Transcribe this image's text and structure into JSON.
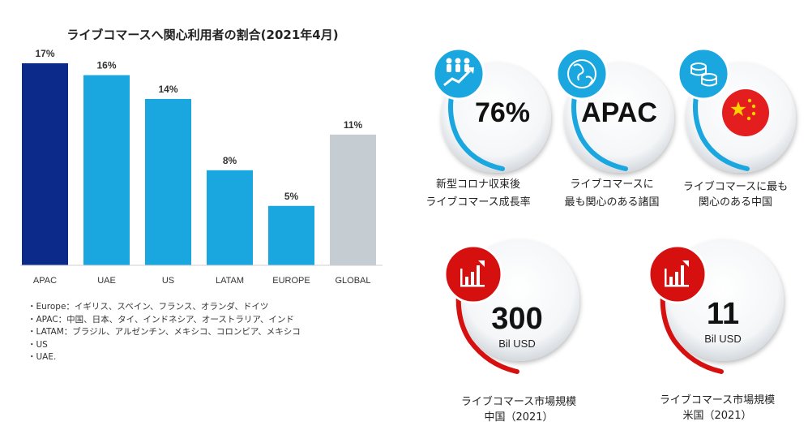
{
  "chart_data": {
    "type": "bar",
    "title": "ライブコマースへ関心利用者の割合(2021年4月)",
    "categories": [
      "APAC",
      "UAE",
      "US",
      "LATAM",
      "EUROPE",
      "GLOBAL"
    ],
    "values": [
      17,
      16,
      14,
      8,
      5,
      11
    ],
    "value_labels": [
      "17%",
      "16%",
      "14%",
      "8%",
      "5%",
      "11%"
    ],
    "colors": [
      "#0b2a8a",
      "#1aa7e0",
      "#1aa7e0",
      "#1aa7e0",
      "#1aa7e0",
      "#c5cdd3"
    ],
    "ylim": [
      0,
      18
    ],
    "grid": false,
    "legend": "none"
  },
  "notes": [
    "・Europe：イギリス、スペイン、フランス、オランダ、ドイツ",
    "・APAC：中国、日本、タイ、インドネシア、オーストラリア、インド",
    "・LATAM：ブラジル、アルゼンチン、メキシコ、コロンビア、メキシコ",
    "・US",
    "・UAE."
  ],
  "stats": [
    {
      "value": "76%",
      "caption": [
        "新型コロナ収束後",
        "ライブコマース成長率"
      ],
      "icon": "growth-people-icon",
      "accent": "#1aa7e0"
    },
    {
      "value": "APAC",
      "caption": [
        "ライブコマースに",
        "最も関心のある諸国"
      ],
      "icon": "globe-icon",
      "accent": "#1aa7e0"
    },
    {
      "value": "",
      "caption": [
        "ライブコマースに最も",
        "関心のある中国"
      ],
      "icon": "coins-icon",
      "accent": "#1aa7e0",
      "flag": "china-flag"
    }
  ],
  "markets": [
    {
      "value": "300",
      "unit": "Bil USD",
      "caption": [
        "ライブコマース市場規模",
        "中国（2021）"
      ],
      "icon": "bar-chart-icon",
      "accent": "#d60f0f"
    },
    {
      "value": "11",
      "unit": "Bil USD",
      "caption": [
        "ライブコマース市場規模",
        "米国（2021）"
      ],
      "icon": "bar-chart-icon",
      "accent": "#d60f0f"
    }
  ]
}
